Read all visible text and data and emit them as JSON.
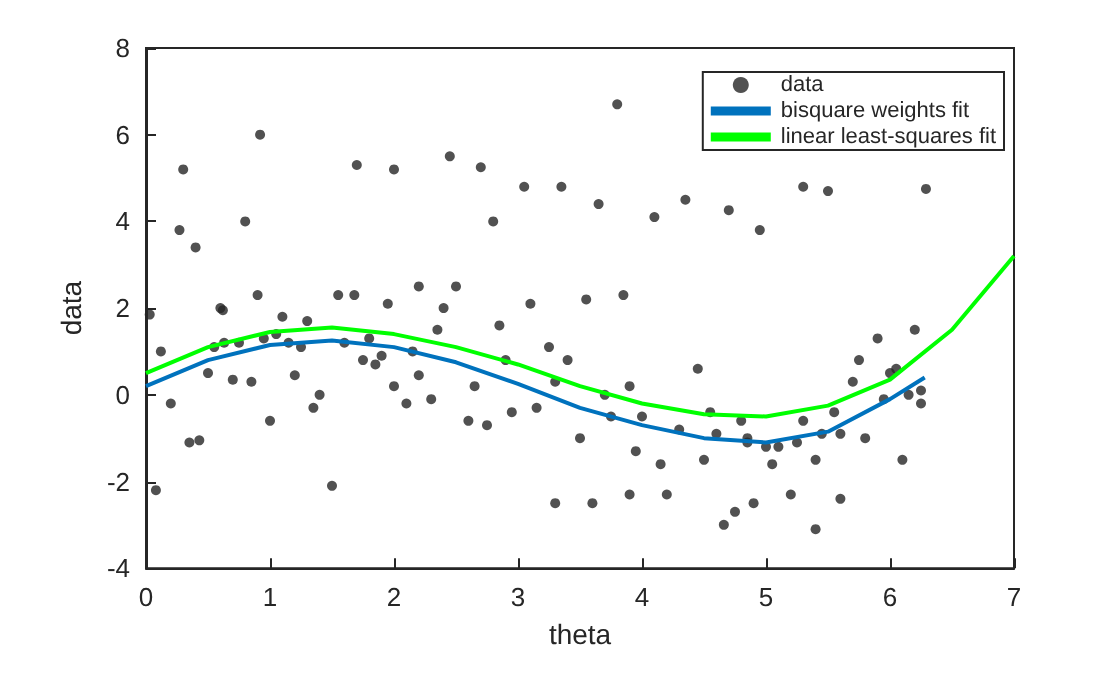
{
  "chart_data": {
    "type": "scatter",
    "xlabel": "theta",
    "ylabel": "data",
    "xlim": [
      0,
      7
    ],
    "xticks": [
      0,
      1,
      2,
      3,
      4,
      5,
      6,
      7
    ],
    "ylim": [
      -4,
      8
    ],
    "yticks": [
      -4,
      -2,
      0,
      2,
      4,
      6,
      8
    ],
    "grid": false,
    "legend": "top right",
    "series": [
      {
        "name": "data",
        "type": "scatter",
        "color": "#262626",
        "marker": "circle",
        "x": [
          0.03,
          0.08,
          0.12,
          0.2,
          0.27,
          0.3,
          0.35,
          0.4,
          0.43,
          0.5,
          0.55,
          0.6,
          0.62,
          0.63,
          0.7,
          0.75,
          0.8,
          0.85,
          0.9,
          0.92,
          0.95,
          1.0,
          1.05,
          1.1,
          1.15,
          1.2,
          1.25,
          1.3,
          1.35,
          1.4,
          1.5,
          1.55,
          1.6,
          1.68,
          1.7,
          1.75,
          1.8,
          1.85,
          1.9,
          1.95,
          2.0,
          2.0,
          2.1,
          2.15,
          2.2,
          2.2,
          2.3,
          2.35,
          2.4,
          2.45,
          2.5,
          2.6,
          2.65,
          2.7,
          2.75,
          2.8,
          2.85,
          2.9,
          2.95,
          3.05,
          3.1,
          3.15,
          3.25,
          3.3,
          3.3,
          3.35,
          3.4,
          3.5,
          3.55,
          3.6,
          3.65,
          3.7,
          3.75,
          3.8,
          3.85,
          3.9,
          3.9,
          3.95,
          4.0,
          4.1,
          4.15,
          4.2,
          4.3,
          4.35,
          4.45,
          4.5,
          4.55,
          4.6,
          4.66,
          4.7,
          4.75,
          4.8,
          4.85,
          4.85,
          4.9,
          4.95,
          5.0,
          5.05,
          5.1,
          5.2,
          5.25,
          5.3,
          5.3,
          5.4,
          5.4,
          5.45,
          5.5,
          5.55,
          5.6,
          5.6,
          5.7,
          5.75,
          5.8,
          5.9,
          5.95,
          6.0,
          6.05,
          6.1,
          6.15,
          6.2,
          6.25,
          6.25,
          6.29
        ],
        "values": [
          1.85,
          -2.2,
          1.0,
          -0.2,
          3.8,
          5.2,
          -1.1,
          3.4,
          -1.05,
          0.5,
          1.1,
          2.0,
          1.95,
          1.2,
          0.35,
          1.2,
          4.0,
          0.3,
          2.3,
          6.0,
          1.3,
          -0.6,
          1.4,
          1.8,
          1.2,
          0.45,
          1.1,
          1.7,
          -0.3,
          0.0,
          -2.1,
          2.3,
          1.2,
          2.3,
          5.3,
          0.8,
          1.3,
          0.7,
          0.9,
          2.1,
          0.2,
          5.2,
          -0.2,
          1.0,
          2.5,
          0.45,
          -0.1,
          1.5,
          2.0,
          5.5,
          2.5,
          -0.6,
          0.2,
          5.25,
          -0.7,
          4.0,
          1.6,
          0.8,
          -0.4,
          4.8,
          2.1,
          -0.3,
          1.1,
          0.3,
          -2.5,
          4.8,
          0.8,
          -1.0,
          2.2,
          -2.5,
          4.4,
          0.0,
          -0.5,
          6.7,
          2.3,
          0.2,
          -2.3,
          -1.3,
          -0.5,
          4.1,
          -1.6,
          -2.3,
          -0.8,
          4.5,
          0.6,
          -1.5,
          -0.4,
          -0.9,
          -3.0,
          4.26,
          -2.7,
          -0.6,
          -1.0,
          -1.1,
          -2.5,
          3.8,
          -1.2,
          -1.6,
          -1.2,
          -2.3,
          -1.1,
          4.8,
          -0.6,
          -1.5,
          -3.1,
          -0.9,
          4.7,
          -0.4,
          -0.9,
          -2.4,
          0.3,
          0.8,
          -1.0,
          1.3,
          -0.1,
          0.5,
          0.6,
          -1.5,
          0.0,
          1.5,
          0.1,
          -0.2,
          4.75
        ]
      },
      {
        "name": "bisquare weights fit",
        "type": "line",
        "color": "#0072bd",
        "marker": "none",
        "x": [
          0,
          0.5,
          1,
          1.5,
          2,
          2.5,
          3,
          3.5,
          4,
          4.5,
          5,
          5.5,
          6,
          6.28
        ],
        "values": [
          0.2,
          0.8,
          1.15,
          1.25,
          1.1,
          0.75,
          0.25,
          -0.3,
          -0.7,
          -1.0,
          -1.1,
          -0.85,
          -0.1,
          0.4
        ]
      },
      {
        "name": "linear least-squares fit",
        "type": "line",
        "color": "#00ff00",
        "marker": "none",
        "x": [
          0,
          0.5,
          1,
          1.5,
          2,
          2.5,
          3,
          3.5,
          4,
          4.5,
          5,
          5.5,
          6,
          6.5,
          7
        ],
        "values": [
          0.5,
          1.1,
          1.45,
          1.55,
          1.4,
          1.1,
          0.7,
          0.2,
          -0.2,
          -0.45,
          -0.5,
          -0.25,
          0.35,
          1.5,
          3.2
        ]
      }
    ]
  }
}
